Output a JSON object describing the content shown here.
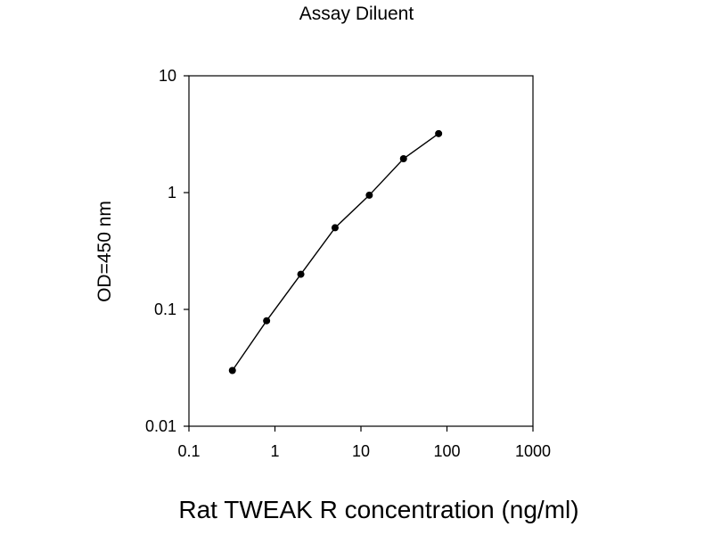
{
  "chart_data": {
    "type": "line",
    "title": "Assay Diluent",
    "xlabel": "Rat TWEAK R concentration (ng/ml)",
    "ylabel": "OD=450 nm",
    "x_scale": "log",
    "y_scale": "log",
    "xlim": [
      0.1,
      1000
    ],
    "ylim": [
      0.01,
      10
    ],
    "x_ticks": [
      "0.1",
      "1",
      "10",
      "100",
      "1000"
    ],
    "y_ticks": [
      "0.01",
      "0.1",
      "1",
      "10"
    ],
    "grid": false,
    "legend": "none",
    "series": [
      {
        "x": [
          0.32,
          0.8,
          2.0,
          5.0,
          12.5,
          31.25,
          80
        ],
        "y": [
          0.03,
          0.08,
          0.2,
          0.5,
          0.95,
          1.95,
          3.2
        ]
      }
    ],
    "colors": {
      "line": "#000000",
      "marker": "#000000",
      "axis": "#000000"
    }
  }
}
